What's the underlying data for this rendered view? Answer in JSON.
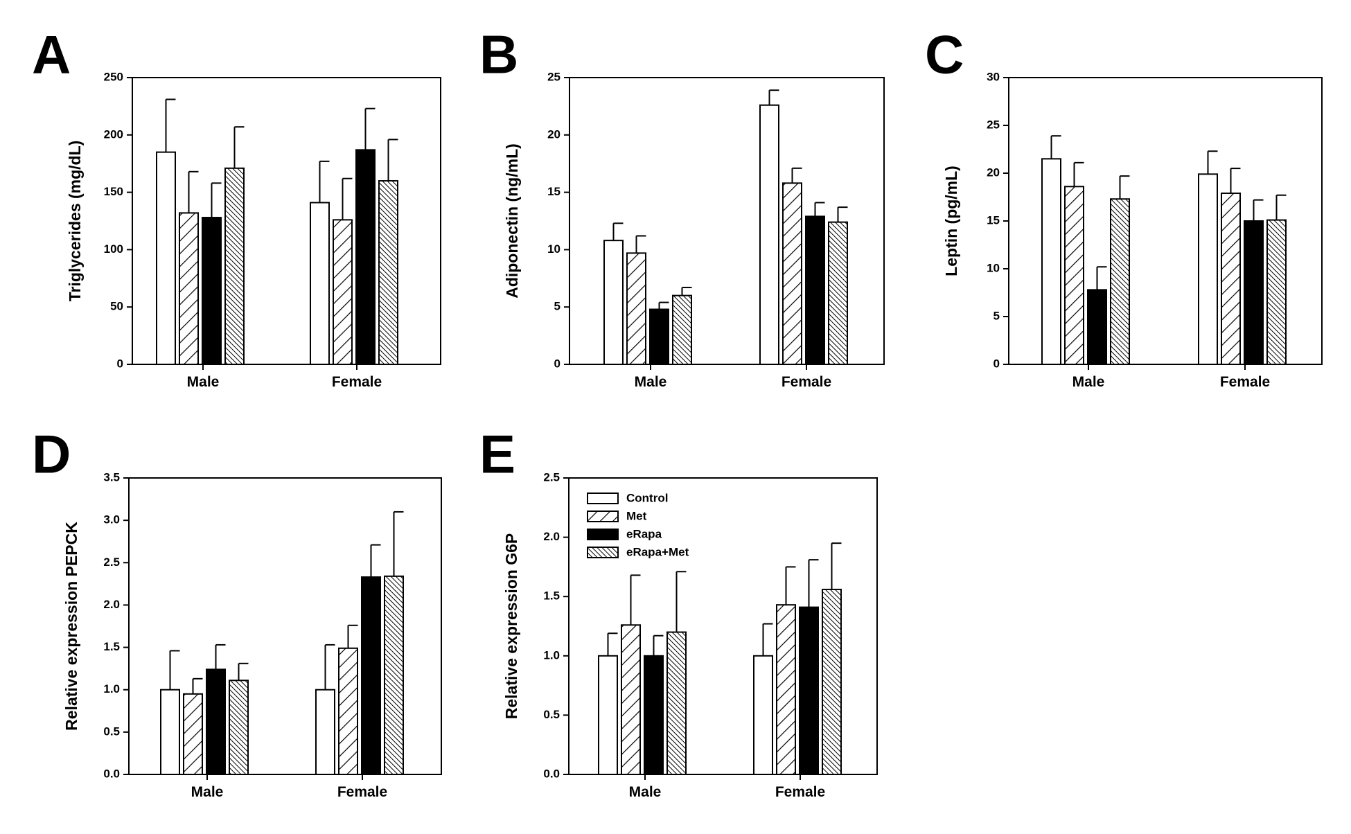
{
  "colors": {
    "ink": "#000000",
    "background": "#ffffff"
  },
  "legend": {
    "entries": [
      {
        "name": "Control",
        "pattern": "open"
      },
      {
        "name": "Met",
        "pattern": "diagonal-wide"
      },
      {
        "name": "eRapa",
        "pattern": "solid"
      },
      {
        "name": "eRapa+Met",
        "pattern": "diagonal-dense"
      }
    ]
  },
  "chart_data": [
    {
      "panel": "A",
      "type": "bar",
      "categories": [
        "Male",
        "Female"
      ],
      "ylabel": "Triglycerides (mg/dL)",
      "ylim": [
        0,
        250
      ],
      "yticks": [
        "0",
        "50",
        "100",
        "150",
        "200",
        "250"
      ],
      "series": [
        {
          "name": "Control",
          "values": [
            185,
            141
          ],
          "errors": [
            46,
            36
          ]
        },
        {
          "name": "Met",
          "values": [
            132,
            126
          ],
          "errors": [
            36,
            36
          ]
        },
        {
          "name": "eRapa",
          "values": [
            128,
            187
          ],
          "errors": [
            30,
            36
          ]
        },
        {
          "name": "eRapa+Met",
          "values": [
            171,
            160
          ],
          "errors": [
            36,
            36
          ]
        }
      ]
    },
    {
      "panel": "B",
      "type": "bar",
      "categories": [
        "Male",
        "Female"
      ],
      "ylabel": "Adiponectin (ng/mL)",
      "ylim": [
        0,
        25
      ],
      "yticks": [
        "0",
        "5",
        "10",
        "15",
        "20",
        "25"
      ],
      "series": [
        {
          "name": "Control",
          "values": [
            10.8,
            22.6
          ],
          "errors": [
            1.5,
            1.3
          ]
        },
        {
          "name": "Met",
          "values": [
            9.7,
            15.8
          ],
          "errors": [
            1.5,
            1.3
          ]
        },
        {
          "name": "eRapa",
          "values": [
            4.8,
            12.9
          ],
          "errors": [
            0.6,
            1.2
          ]
        },
        {
          "name": "eRapa+Met",
          "values": [
            6.0,
            12.4
          ],
          "errors": [
            0.7,
            1.3
          ]
        }
      ]
    },
    {
      "panel": "C",
      "type": "bar",
      "categories": [
        "Male",
        "Female"
      ],
      "ylabel": "Leptin (pg/mL)",
      "ylim": [
        0,
        30
      ],
      "yticks": [
        "0",
        "5",
        "10",
        "15",
        "20",
        "25",
        "30"
      ],
      "series": [
        {
          "name": "Control",
          "values": [
            21.5,
            19.9
          ],
          "errors": [
            2.4,
            2.4
          ]
        },
        {
          "name": "Met",
          "values": [
            18.6,
            17.9
          ],
          "errors": [
            2.5,
            2.6
          ]
        },
        {
          "name": "eRapa",
          "values": [
            7.8,
            15.0
          ],
          "errors": [
            2.4,
            2.2
          ]
        },
        {
          "name": "eRapa+Met",
          "values": [
            17.3,
            15.1
          ],
          "errors": [
            2.4,
            2.6
          ]
        }
      ]
    },
    {
      "panel": "D",
      "type": "bar",
      "categories": [
        "Male",
        "Female"
      ],
      "ylabel": "Relative expression PEPCK",
      "ylim": [
        0,
        3.5
      ],
      "yticks": [
        "0.0",
        "0.5",
        "1.0",
        "1.5",
        "2.0",
        "2.5",
        "3.0",
        "3.5"
      ],
      "series": [
        {
          "name": "Control",
          "values": [
            1.0,
            1.0
          ],
          "errors": [
            0.46,
            0.53
          ]
        },
        {
          "name": "Met",
          "values": [
            0.95,
            1.49
          ],
          "errors": [
            0.18,
            0.27
          ]
        },
        {
          "name": "eRapa",
          "values": [
            1.24,
            2.33
          ],
          "errors": [
            0.29,
            0.38
          ]
        },
        {
          "name": "eRapa+Met",
          "values": [
            1.11,
            2.34
          ],
          "errors": [
            0.2,
            0.76
          ]
        }
      ]
    },
    {
      "panel": "E",
      "type": "bar",
      "categories": [
        "Male",
        "Female"
      ],
      "ylabel": "Relative expression G6P",
      "ylim": [
        0,
        2.5
      ],
      "yticks": [
        "0.0",
        "0.5",
        "1.0",
        "1.5",
        "2.0",
        "2.5"
      ],
      "series": [
        {
          "name": "Control",
          "values": [
            1.0,
            1.0
          ],
          "errors": [
            0.19,
            0.27
          ]
        },
        {
          "name": "Met",
          "values": [
            1.26,
            1.43
          ],
          "errors": [
            0.42,
            0.32
          ]
        },
        {
          "name": "eRapa",
          "values": [
            1.0,
            1.41
          ],
          "errors": [
            0.17,
            0.4
          ]
        },
        {
          "name": "eRapa+Met",
          "values": [
            1.2,
            1.56
          ],
          "errors": [
            0.51,
            0.39
          ]
        }
      ]
    }
  ]
}
